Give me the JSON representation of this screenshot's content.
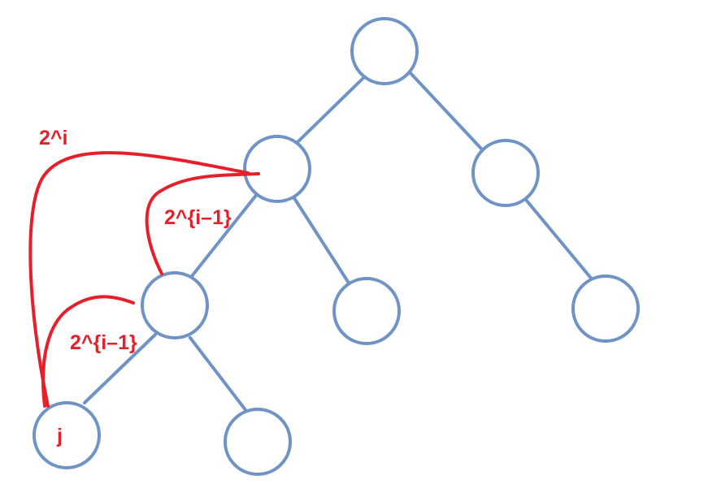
{
  "colors": {
    "tree": "#6E93C4",
    "jump": "#E5202A",
    "background": "#FFFFFF"
  },
  "labels": {
    "jump_2i": "2^i",
    "jump_upper_half": "2^{i–1}",
    "jump_lower_half": "2^{i–1}",
    "node_j": "j"
  }
}
